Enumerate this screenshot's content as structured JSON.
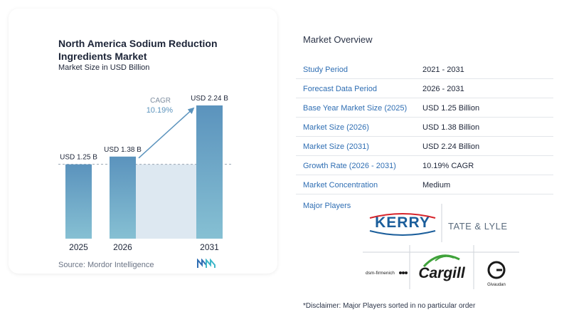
{
  "chart_data": {
    "type": "bar",
    "title": "North America Sodium Reduction Ingredients Market",
    "subtitle": "Market Size in USD Billion",
    "categories": [
      "2025",
      "2026",
      "2031"
    ],
    "values": [
      1.25,
      1.38,
      2.24
    ],
    "value_labels": [
      "USD 1.25 B",
      "USD 1.38 B",
      "USD 2.24 B"
    ],
    "ylim": [
      0,
      2.24
    ],
    "cagr_label": "CAGR",
    "cagr_value": "10.19%",
    "colors": {
      "bar_top": "#5b93bd",
      "bar_bottom": "#86c0d3",
      "shade": "#dde8f1",
      "arrow": "#5b93bd"
    }
  },
  "source": "Source:  Mordor Intelligence",
  "overview": {
    "title": "Market Overview",
    "rows": [
      {
        "label": "Study Period",
        "value": "2021 - 2031"
      },
      {
        "label": "Forecast Data Period",
        "value": "2026 - 2031"
      },
      {
        "label": "Base Year Market Size (2025)",
        "value": "USD 1.25 Billion"
      },
      {
        "label": "Market Size (2026)",
        "value": "USD 1.38 Billion"
      },
      {
        "label": "Market Size (2031)",
        "value": "USD 2.24 Billion"
      },
      {
        "label": "Growth Rate (2026 - 2031)",
        "value": "10.19% CAGR"
      },
      {
        "label": "Market Concentration",
        "value": "Medium"
      }
    ]
  },
  "players": {
    "title": "Major Players",
    "names": [
      "KERRY",
      "TATE & LYLE",
      "dsm-firmenich",
      "Cargill",
      "Givaudan"
    ],
    "colors": {
      "kerry": "#1b5e9b",
      "kerry_accent": "#d6232a",
      "tate": "#5b6c7e",
      "tate_amp": "#d33a2c",
      "cargill": "#1a1a1a",
      "cargill_leaf": "#3fa23a"
    }
  },
  "disclaimer": "*Disclaimer: Major Players sorted in no particular order"
}
